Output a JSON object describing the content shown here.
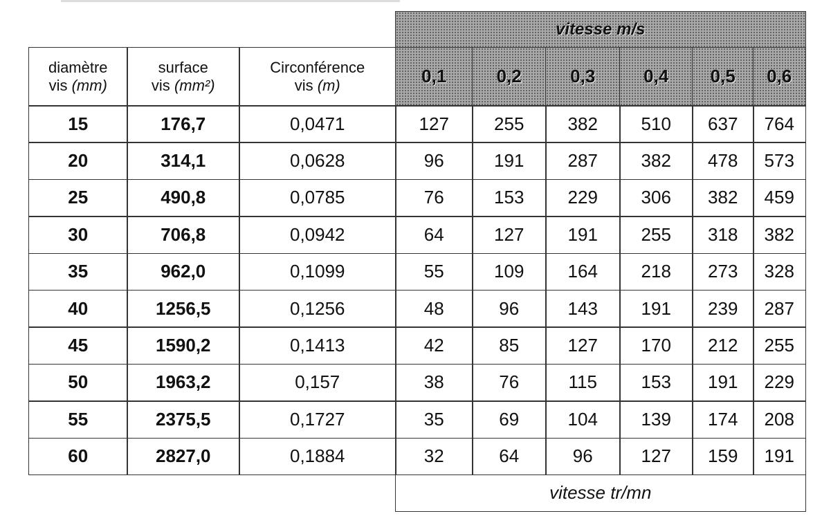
{
  "header": {
    "speed_title": "vitesse m/s",
    "columns": [
      {
        "line1": "diamètre",
        "line2": "vis",
        "unit": "(mm)"
      },
      {
        "line1": "surface",
        "line2": "vis",
        "unit": "(mm²)"
      },
      {
        "line1": "Circonférence",
        "line2": "vis",
        "unit": "(m)"
      }
    ],
    "speeds": [
      "0,1",
      "0,2",
      "0,3",
      "0,4",
      "0,5",
      "0,6"
    ]
  },
  "rows": [
    [
      "15",
      "176,7",
      "0,0471",
      "127",
      "255",
      "382",
      "510",
      "637",
      "764"
    ],
    [
      "20",
      "314,1",
      "0,0628",
      "96",
      "191",
      "287",
      "382",
      "478",
      "573"
    ],
    [
      "25",
      "490,8",
      "0,0785",
      "76",
      "153",
      "229",
      "306",
      "382",
      "459"
    ],
    [
      "30",
      "706,8",
      "0,0942",
      "64",
      "127",
      "191",
      "255",
      "318",
      "382"
    ],
    [
      "35",
      "962,0",
      "0,1099",
      "55",
      "109",
      "164",
      "218",
      "273",
      "328"
    ],
    [
      "40",
      "1256,5",
      "0,1256",
      "48",
      "96",
      "143",
      "191",
      "239",
      "287"
    ],
    [
      "45",
      "1590,2",
      "0,1413",
      "42",
      "85",
      "127",
      "170",
      "212",
      "255"
    ],
    [
      "50",
      "1963,2",
      "0,157",
      "38",
      "76",
      "115",
      "153",
      "191",
      "229"
    ],
    [
      "55",
      "2375,5",
      "0,1727",
      "35",
      "69",
      "104",
      "139",
      "174",
      "208"
    ],
    [
      "60",
      "2827,0",
      "0,1884",
      "32",
      "64",
      "96",
      "127",
      "159",
      "191"
    ]
  ],
  "footer": "vitesse tr/mn"
}
